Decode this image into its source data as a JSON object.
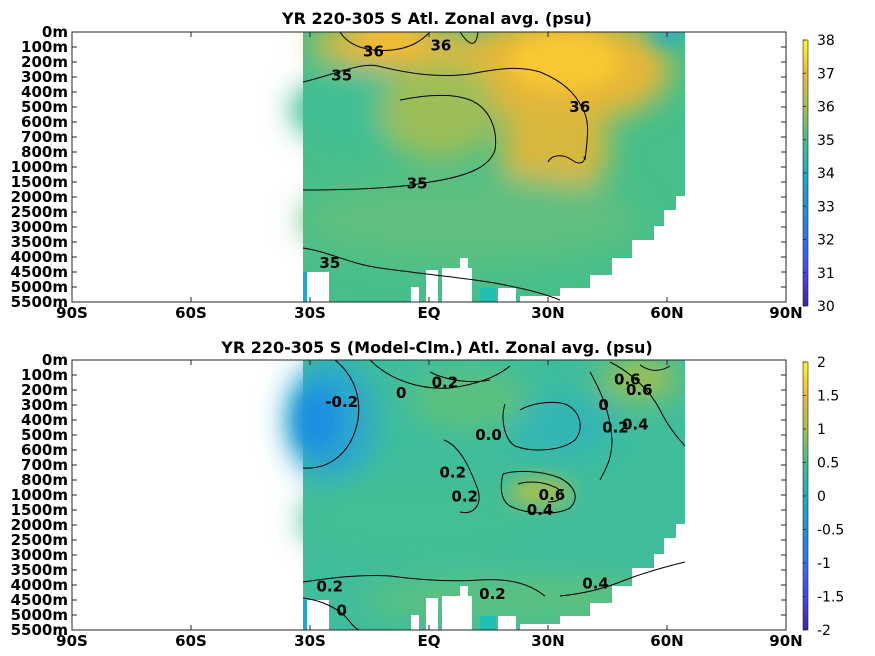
{
  "chart_data": [
    {
      "type": "heatmap",
      "title": "YR 220-305 S Atl. Zonal avg. (psu)",
      "x_ticks": [
        "90S",
        "60S",
        "30S",
        "EQ",
        "30N",
        "60N",
        "90N"
      ],
      "x_tick_values": [
        -90,
        -60,
        -30,
        0,
        30,
        60,
        90
      ],
      "xlim": [
        -90,
        90
      ],
      "y_ticks": [
        "0m",
        "100m",
        "200m",
        "300m",
        "400m",
        "500m",
        "600m",
        "700m",
        "800m",
        "1000m",
        "1500m",
        "2000m",
        "2500m",
        "3000m",
        "3500m",
        "4000m",
        "4500m",
        "5000m",
        "5500m"
      ],
      "colorbar": {
        "range": [
          30,
          38
        ],
        "ticks": [
          "38",
          "37",
          "36",
          "35",
          "34",
          "33",
          "32",
          "31",
          "30"
        ],
        "colormap": "parula"
      },
      "contour_labels": [
        {
          "text": "36",
          "lat": -14,
          "depth_index": 1.3
        },
        {
          "text": "36",
          "lat": 3,
          "depth_index": 0.9
        },
        {
          "text": "35",
          "lat": -22,
          "depth_index": 2.9
        },
        {
          "text": "36",
          "lat": 38,
          "depth_index": 5.0
        },
        {
          "text": "35",
          "lat": -3,
          "depth_index": 10.1
        },
        {
          "text": "35",
          "lat": -25,
          "depth_index": 15.4
        }
      ]
    },
    {
      "type": "heatmap",
      "title": "YR 220-305 S (Model-Clm.) Atl. Zonal avg. (psu)",
      "x_ticks": [
        "90S",
        "60S",
        "30S",
        "EQ",
        "30N",
        "60N",
        "90N"
      ],
      "x_tick_values": [
        -90,
        -60,
        -30,
        0,
        30,
        60,
        90
      ],
      "xlim": [
        -90,
        90
      ],
      "y_ticks": [
        "0m",
        "100m",
        "200m",
        "300m",
        "400m",
        "500m",
        "600m",
        "700m",
        "800m",
        "1000m",
        "1500m",
        "2000m",
        "2500m",
        "3000m",
        "3500m",
        "4000m",
        "4500m",
        "5000m",
        "5500m"
      ],
      "colorbar": {
        "range": [
          -2,
          2
        ],
        "ticks": [
          "2",
          "1.5",
          "1",
          "0.5",
          "0",
          "-0.5",
          "-1",
          "-1.5",
          "-2"
        ],
        "colormap": "parula"
      },
      "contour_labels": [
        {
          "text": "0.2",
          "lat": 4,
          "depth_index": 1.5
        },
        {
          "text": "-0.2",
          "lat": -22,
          "depth_index": 2.8
        },
        {
          "text": "0",
          "lat": -7,
          "depth_index": 2.2
        },
        {
          "text": "0.6",
          "lat": 50,
          "depth_index": 1.3
        },
        {
          "text": "0.6",
          "lat": 53,
          "depth_index": 2.0
        },
        {
          "text": "0",
          "lat": 44,
          "depth_index": 3.0
        },
        {
          "text": "0.2",
          "lat": 47,
          "depth_index": 4.5
        },
        {
          "text": "0.4",
          "lat": 52,
          "depth_index": 4.3
        },
        {
          "text": "0.0",
          "lat": 15,
          "depth_index": 5.0
        },
        {
          "text": "0.2",
          "lat": 6,
          "depth_index": 7.5
        },
        {
          "text": "0.2",
          "lat": 9,
          "depth_index": 9.1
        },
        {
          "text": "0.6",
          "lat": 31,
          "depth_index": 9.0
        },
        {
          "text": "0.4",
          "lat": 28,
          "depth_index": 10.0
        },
        {
          "text": "0.2",
          "lat": -25,
          "depth_index": 15.1
        },
        {
          "text": "0",
          "lat": -22,
          "depth_index": 16.7
        },
        {
          "text": "0.2",
          "lat": 16,
          "depth_index": 15.6
        },
        {
          "text": "0.4",
          "lat": 42,
          "depth_index": 14.9
        }
      ]
    }
  ]
}
